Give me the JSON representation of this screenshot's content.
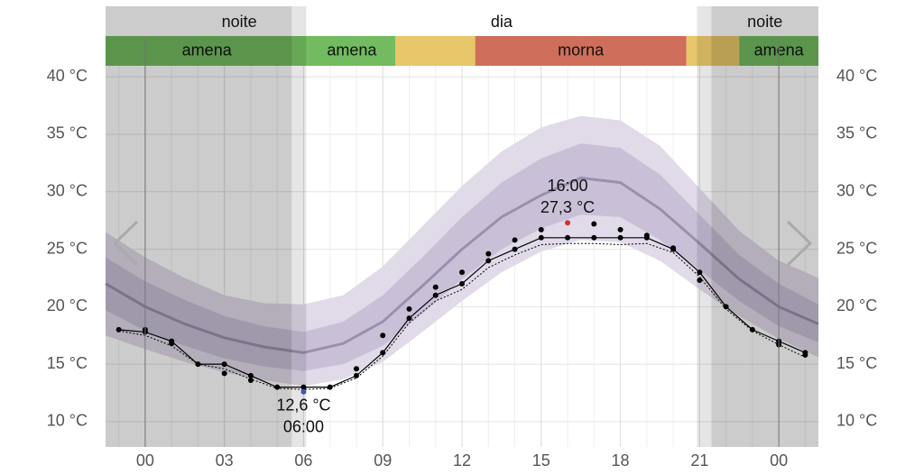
{
  "chart_data": {
    "type": "line",
    "xlim": [
      -1.5,
      25.5
    ],
    "ylim": [
      7.8,
      40.8
    ],
    "xticks": [
      {
        "value": 0,
        "label": "00"
      },
      {
        "value": 3,
        "label": "03"
      },
      {
        "value": 6,
        "label": "06"
      },
      {
        "value": 9,
        "label": "09"
      },
      12,
      15,
      18,
      21,
      {
        "value": 24,
        "label": "00"
      }
    ],
    "yticks": [
      {
        "value": 10,
        "label": "10 °C"
      },
      {
        "value": 15,
        "label": "15 °C"
      },
      {
        "value": 20,
        "label": "20 °C"
      },
      {
        "value": 25,
        "label": "25 °C"
      },
      {
        "value": 30,
        "label": "30 °C"
      },
      {
        "value": 35,
        "label": "35 °C"
      },
      {
        "value": 40,
        "label": "40 °C"
      }
    ],
    "grid": true,
    "periods": [
      {
        "label": "noite",
        "start": -1.5,
        "end": 6.1,
        "twilight": 5.55
      },
      {
        "label": "dia",
        "start": 6.1,
        "end": 20.9
      },
      {
        "label": "noite",
        "start": 20.9,
        "end": 25.5,
        "twilight": 21.45
      }
    ],
    "comfort": [
      {
        "label": "amena",
        "start": -1.5,
        "end": 6.17,
        "color": "#72bb60"
      },
      {
        "label": "amena",
        "start": 6.17,
        "end": 9.48,
        "color": "#72bb60"
      },
      {
        "label": null,
        "start": 9.48,
        "end": 12.5,
        "color": "#e8c76a"
      },
      {
        "label": "morna",
        "start": 12.5,
        "end": 20.5,
        "color": "#cf6e5a"
      },
      {
        "label": null,
        "start": 20.5,
        "end": 22.5,
        "color": "#e8c76a"
      },
      {
        "label": "amena",
        "start": 22.5,
        "end": 25.5,
        "color": "#72bb60"
      }
    ],
    "normal": {
      "x": [
        -1.5,
        0,
        1.5,
        3,
        4.5,
        6,
        7.5,
        9,
        10.5,
        12,
        13.5,
        15,
        16.5,
        18,
        19.5,
        21,
        22.5,
        24,
        25.5
      ],
      "mean": [
        22,
        20,
        18.5,
        17.3,
        16.5,
        16,
        16.8,
        18.7,
        21.8,
        25,
        27.8,
        29.7,
        31.2,
        30.8,
        28.5,
        25.5,
        22.4,
        20,
        18.5
      ],
      "inner_low": [
        19.7,
        17.9,
        16.6,
        15.5,
        14.8,
        14.4,
        15,
        16.6,
        19.4,
        22.4,
        25,
        26.8,
        28,
        27.8,
        25.8,
        23.2,
        20.5,
        18.3,
        16.9
      ],
      "inner_high": [
        24.3,
        22.2,
        20.6,
        19.2,
        18.3,
        17.8,
        18.7,
        21,
        24.3,
        27.8,
        30.8,
        32.9,
        34.2,
        33.8,
        31.5,
        28,
        24.5,
        22,
        20.2
      ],
      "outer_low": [
        17.5,
        16.3,
        15.2,
        14.3,
        13.6,
        13.1,
        13.7,
        15.2,
        17.8,
        20.5,
        23,
        24.8,
        25.8,
        25.6,
        24,
        21.5,
        19.2,
        17.2,
        15.6
      ],
      "outer_high": [
        26.5,
        24.3,
        22.5,
        21,
        20.3,
        20.2,
        21,
        23.5,
        27,
        30.5,
        33.5,
        35.6,
        36.6,
        36.2,
        34,
        30.3,
        26.6,
        24,
        22.5
      ],
      "mean_color": "#9a90ad",
      "inner_color": "#c9c0d8",
      "outer_color": "#e0dae9"
    },
    "x": [
      -1,
      0,
      1,
      2,
      3,
      4,
      5,
      6,
      7,
      8,
      9,
      10,
      11,
      12,
      13,
      14,
      15,
      16,
      17,
      18,
      19,
      20,
      21,
      22,
      23,
      24,
      25
    ],
    "series": [
      {
        "color": "#000000",
        "style": "solid",
        "values": [
          18,
          17.8,
          17,
          15,
          15,
          14,
          13,
          13,
          13,
          14,
          16,
          19,
          21,
          22,
          24,
          25,
          26,
          26,
          26,
          26,
          26,
          25,
          23,
          20,
          18,
          17,
          16
        ]
      },
      {
        "color": "#000000",
        "style": "dotted",
        "values": [
          17.9,
          17.5,
          16.6,
          15,
          14.6,
          13.7,
          12.9,
          12.8,
          12.9,
          13.8,
          15.7,
          18.6,
          20.5,
          21.5,
          23.4,
          24.5,
          25.4,
          25.5,
          25.5,
          25.4,
          25.5,
          24.7,
          22.6,
          19.8,
          17.9,
          16.7,
          15.6
        ]
      },
      {
        "color": "#000000",
        "style": "points",
        "values": [
          null,
          18,
          16.8,
          null,
          14.2,
          13.6,
          null,
          null,
          null,
          14.6,
          17.5,
          19.8,
          21.7,
          23,
          24.6,
          25.8,
          26.7,
          null,
          27.2,
          26.7,
          26.2,
          25.1,
          22.3,
          null,
          null,
          16.7,
          15.8
        ]
      }
    ],
    "annotations": [
      {
        "x": 6,
        "value": 12.6,
        "label": "12,6 °C",
        "time": "06:00",
        "color": "#4a5fd0",
        "position": "below"
      },
      {
        "x": 16,
        "value": 27.3,
        "label": "27,3 °C",
        "time": "16:00",
        "color": "#d03030",
        "position": "above"
      }
    ]
  }
}
